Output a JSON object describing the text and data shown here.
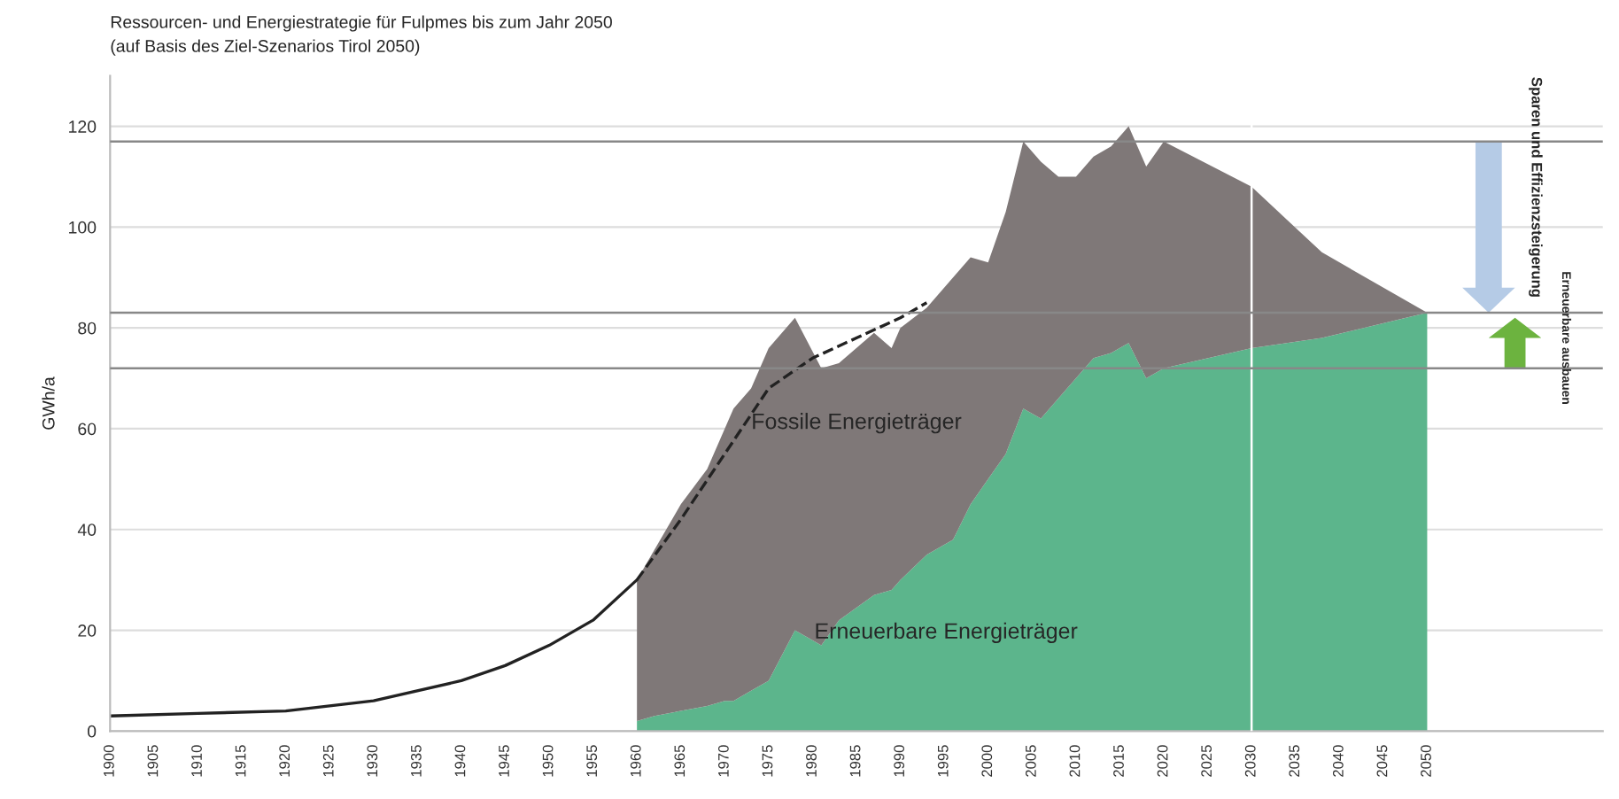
{
  "chart_data": {
    "type": "area",
    "title": "Ressourcen- und Energiestrategie für Fulpmes bis zum Jahr 2050",
    "subtitle": "(auf Basis des Ziel-Szenarios Tirol 2050)",
    "ylabel": "GWh/a",
    "x": [
      1960,
      1962,
      1965,
      1968,
      1970,
      1971,
      1973,
      1975,
      1978,
      1981,
      1983,
      1987,
      1989,
      1990,
      1993,
      1996,
      1998,
      2000,
      2002,
      2004,
      2006,
      2008,
      2010,
      2012,
      2014,
      2016,
      2018,
      2020,
      2030,
      2038,
      2050
    ],
    "stacked": true,
    "series": [
      {
        "color": "#5cb58c",
        "values": [
          2,
          3,
          4,
          5,
          6,
          6,
          8,
          10,
          20,
          17,
          22,
          27,
          28,
          30,
          35,
          38,
          45,
          50,
          55,
          64,
          62,
          66,
          70,
          74,
          75,
          77,
          70,
          72,
          76,
          78,
          83
        ]
      },
      {
        "color": "#7f7878",
        "values": [
          28,
          33,
          41,
          47,
          54,
          58,
          60,
          66,
          62,
          55,
          51,
          52,
          48,
          50,
          49,
          52,
          49,
          43,
          48,
          53,
          51,
          44,
          40,
          40,
          41,
          43,
          42,
          45,
          32,
          17,
          0
        ]
      },
      {
        "type": "line",
        "color": "#222222",
        "line_style": "solid",
        "x": [
          1900,
          1910,
          1920,
          1930,
          1940,
          1945,
          1950,
          1955,
          1960
        ],
        "values": [
          3,
          3.5,
          4,
          6,
          10,
          13,
          17,
          22,
          30
        ]
      },
      {
        "type": "line",
        "color": "#222222",
        "line_style": "dashed",
        "x": [
          1960,
          1965,
          1970,
          1975,
          1980,
          1985,
          1990,
          1993
        ],
        "values": [
          30,
          42,
          55,
          68,
          74,
          78,
          82,
          85
        ]
      }
    ],
    "xlim": [
      1900,
      2070
    ],
    "xticks": [
      1900,
      1905,
      1910,
      1915,
      1920,
      1925,
      1930,
      1935,
      1940,
      1945,
      1950,
      1955,
      1960,
      1965,
      1970,
      1975,
      1980,
      1985,
      1990,
      1995,
      2000,
      2005,
      2010,
      2015,
      2020,
      2025,
      2030,
      2035,
      2040,
      2045,
      2050
    ],
    "ylim": [
      0,
      130
    ],
    "yticks": [
      0,
      20,
      40,
      60,
      80,
      100,
      120
    ],
    "grid": "y",
    "ref_lines": [
      {
        "axis": "x",
        "value": 2030,
        "color": "#ffffff"
      },
      {
        "axis": "y",
        "value": 117,
        "color": "#888888"
      },
      {
        "axis": "y",
        "value": 83,
        "color": "#888888"
      },
      {
        "axis": "y",
        "value": 72,
        "color": "#888888"
      }
    ],
    "annotations": [
      "Fossile Energieträger",
      "Erneuerbare Energieträger",
      "Sparen und Effizienzsteigerung",
      "Erneuerbare ausbauen"
    ]
  }
}
